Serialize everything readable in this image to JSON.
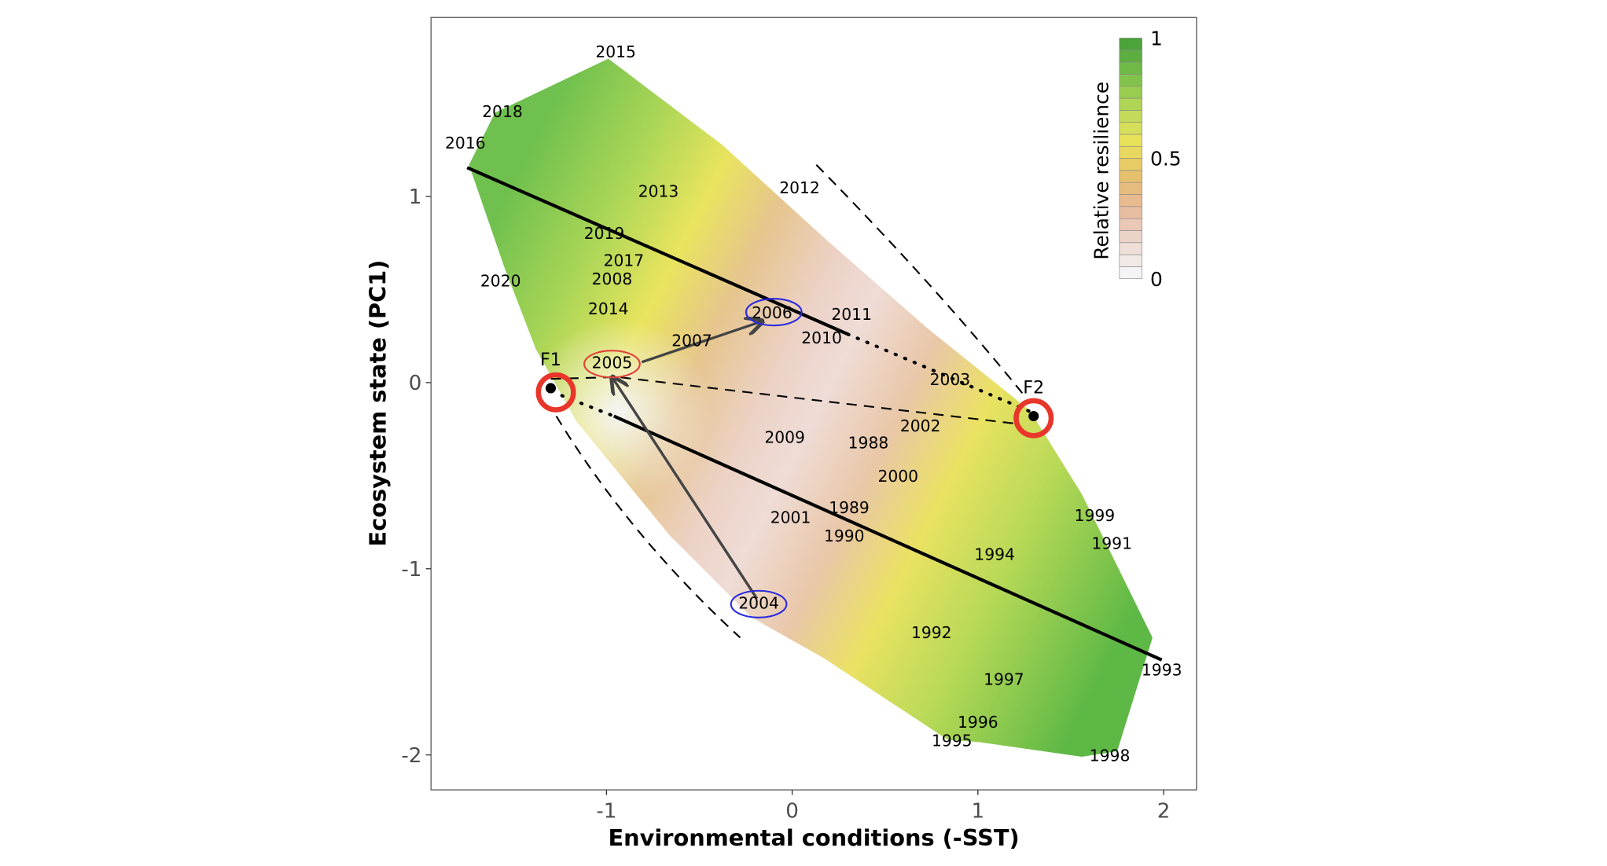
{
  "chart_data": {
    "type": "scatter",
    "title": "",
    "xlabel": "Environmental conditions (-SST)",
    "ylabel": "Ecosystem state (PC1)",
    "xlim": [
      -1.95,
      2.18
    ],
    "ylim": [
      -2.19,
      1.96
    ],
    "xticks": [
      "-1",
      "0",
      "1",
      "2"
    ],
    "xtick_values": [
      -1,
      0,
      1,
      2
    ],
    "yticks": [
      "1",
      "0",
      "-1",
      "-2"
    ],
    "ytick_values": [
      1,
      0,
      -1,
      -2
    ],
    "grid": false,
    "colorbar": {
      "title": "Relative resilience",
      "ticks": [
        "1",
        "0.5",
        "0"
      ],
      "tick_values": [
        1,
        0.5,
        0
      ],
      "colors": [
        "#f4f4f4",
        "#edd6cd",
        "#e7b99a",
        "#e5c06a",
        "#ebe35a",
        "#b7d957",
        "#7cc24a",
        "#4ba33a"
      ],
      "placement": "top-right"
    },
    "points": [
      {
        "label": "2015",
        "x": -0.95,
        "y": 1.77
      },
      {
        "label": "2018",
        "x": -1.56,
        "y": 1.45
      },
      {
        "label": "2016",
        "x": -1.76,
        "y": 1.28
      },
      {
        "label": "2013",
        "x": -0.72,
        "y": 1.02
      },
      {
        "label": "2012",
        "x": 0.04,
        "y": 1.04
      },
      {
        "label": "2019",
        "x": -0.99,
        "y": 0.74
      },
      {
        "label": "2017",
        "x": -0.94,
        "y": 0.7
      },
      {
        "label": "2020",
        "x": -1.57,
        "y": 0.54
      },
      {
        "label": "2008",
        "x": -0.97,
        "y": 0.55
      },
      {
        "label": "2014",
        "x": -0.99,
        "y": 0.39
      },
      {
        "label": "2006",
        "x": -0.02,
        "y": 0.33
      },
      {
        "label": "2010",
        "x": 0.07,
        "y": 0.29
      },
      {
        "label": "2011",
        "x": 0.32,
        "y": 0.36
      },
      {
        "label": "2007",
        "x": -0.54,
        "y": 0.22
      },
      {
        "label": "2005",
        "x": -0.97,
        "y": 0.1
      },
      {
        "label": "2003",
        "x": 0.85,
        "y": 0.01
      },
      {
        "label": "2009",
        "x": -0.04,
        "y": -0.3
      },
      {
        "label": "1988",
        "x": 0.41,
        "y": -0.33
      },
      {
        "label": "2002",
        "x": 0.69,
        "y": -0.24
      },
      {
        "label": "2000",
        "x": 0.57,
        "y": -0.51
      },
      {
        "label": "2001",
        "x": 0.08,
        "y": -0.73
      },
      {
        "label": "1989",
        "x": 0.24,
        "y": -0.69
      },
      {
        "label": "1990",
        "x": 0.28,
        "y": -0.83
      },
      {
        "label": "1999",
        "x": 1.64,
        "y": -0.76
      },
      {
        "label": "1991",
        "x": 1.71,
        "y": -0.82
      },
      {
        "label": "1994",
        "x": 1.09,
        "y": -0.93
      },
      {
        "label": "2004",
        "x": -0.18,
        "y": -1.19
      },
      {
        "label": "1992",
        "x": 0.75,
        "y": -1.35
      },
      {
        "label": "1997",
        "x": 1.14,
        "y": -1.6
      },
      {
        "label": "1993",
        "x": 1.99,
        "y": -1.55
      },
      {
        "label": "1996",
        "x": 1.0,
        "y": -1.83
      },
      {
        "label": "1995",
        "x": 0.86,
        "y": -1.93
      },
      {
        "label": "1998",
        "x": 1.71,
        "y": -2.01
      }
    ],
    "hull": [
      [
        -1.74,
        1.17
      ],
      [
        -1.6,
        1.45
      ],
      [
        -0.99,
        1.74
      ],
      [
        -0.38,
        1.28
      ],
      [
        0.17,
        0.78
      ],
      [
        0.73,
        0.29
      ],
      [
        1.28,
        -0.15
      ],
      [
        1.56,
        -0.6
      ],
      [
        1.94,
        -1.37
      ],
      [
        1.75,
        -1.98
      ],
      [
        1.56,
        -2.01
      ],
      [
        1.0,
        -1.93
      ],
      [
        0.84,
        -1.92
      ],
      [
        0.17,
        -1.48
      ],
      [
        -0.22,
        -1.26
      ],
      [
        -0.66,
        -0.82
      ],
      [
        -1.16,
        -0.21
      ],
      [
        -1.38,
        0.18
      ],
      [
        -1.55,
        0.62
      ]
    ],
    "fixed_points": [
      {
        "label": "F1",
        "x": -1.3,
        "y": -0.03
      },
      {
        "label": "F2",
        "x": 1.3,
        "y": -0.18
      }
    ],
    "lines": {
      "solid": [
        [
          [
            -1.75,
            1.155
          ],
          [
            0.3,
            0.26
          ]
        ],
        [
          [
            -0.96,
            -0.18
          ],
          [
            1.99,
            -1.49
          ]
        ]
      ],
      "dotted": [
        [
          [
            0.3,
            0.26
          ],
          [
            1.28,
            -0.155
          ]
        ],
        [
          [
            -1.24,
            -0.07
          ],
          [
            -0.96,
            -0.18
          ]
        ]
      ],
      "dashed": [
        [
          [
            -1.3,
            0.02
          ],
          [
            -0.94,
            0.03
          ],
          [
            1.2,
            -0.22
          ]
        ]
      ],
      "dashed_curves": [
        [
          [
            0.13,
            1.17
          ],
          [
            0.73,
            0.51
          ],
          [
            1.25,
            -0.07
          ]
        ],
        [
          [
            -1.27,
            -0.18
          ],
          [
            -0.83,
            -0.82
          ],
          [
            -0.28,
            -1.37
          ]
        ]
      ],
      "arrows": [
        [
          [
            -0.19,
            -1.16
          ],
          [
            -0.97,
            0.03
          ]
        ],
        [
          [
            -0.81,
            0.11
          ],
          [
            -0.16,
            0.33
          ]
        ]
      ]
    },
    "highlight_ellipses": [
      {
        "year": "2005",
        "x": -0.97,
        "y": 0.1,
        "color": "#e0403a"
      },
      {
        "year": "2006",
        "x": -0.01,
        "y": 0.34,
        "color": "#2a2ae0"
      },
      {
        "year": "2004",
        "x": -0.18,
        "y": -1.19,
        "color": "#2a2ae0"
      }
    ],
    "fixed_point_ring_color": "#e8362a"
  }
}
